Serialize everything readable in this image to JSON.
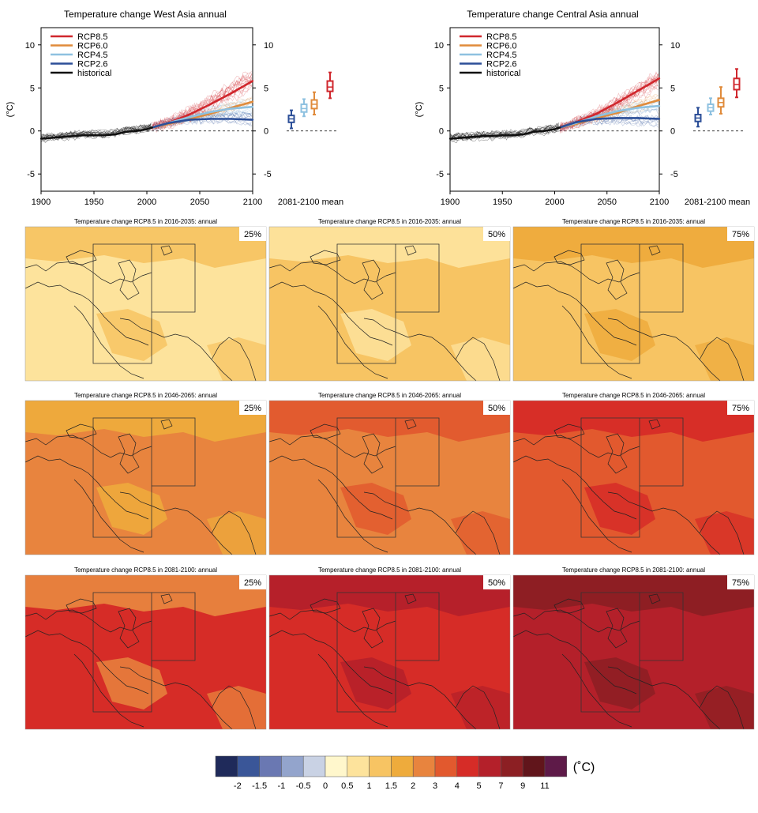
{
  "colorbar": {
    "labels": [
      "-2",
      "-1.5",
      "-1",
      "-0.5",
      "0",
      "0.5",
      "1",
      "1.5",
      "2",
      "3",
      "4",
      "5",
      "7",
      "9",
      "11"
    ],
    "colors": [
      "#1f2a5a",
      "#3a5698",
      "#6a78b2",
      "#93a4cc",
      "#c9d2e4",
      "#fff7cc",
      "#fde39c",
      "#f7c463",
      "#eeab3c",
      "#e8843e",
      "#e2592e",
      "#d62c27",
      "#b4202a",
      "#8c1f23",
      "#61151b",
      "#5e1a48"
    ],
    "unit": "(˚C)"
  },
  "chart_data": [
    {
      "type": "line",
      "title": "Temperature change West Asia annual",
      "ylabel": "(°C)",
      "xlim": [
        1900,
        2100
      ],
      "ylim": [
        -7,
        12
      ],
      "x_ticks": [
        "1900",
        "1950",
        "2000",
        "2050",
        "2100"
      ],
      "y_ticks": [
        "-5",
        "0",
        "5",
        "10"
      ],
      "legend": "top-left",
      "box_label": "2081-2100 mean",
      "series": [
        {
          "name": "RCP8.5",
          "color": "#d0272d",
          "x": [
            2005,
            2020,
            2040,
            2060,
            2080,
            2100
          ],
          "values": [
            0.4,
            0.9,
            1.9,
            3.1,
            4.4,
            5.8
          ]
        },
        {
          "name": "RCP6.0",
          "color": "#e08b3b",
          "x": [
            2005,
            2020,
            2040,
            2060,
            2080,
            2100
          ],
          "values": [
            0.4,
            0.8,
            1.4,
            2.0,
            2.7,
            3.4
          ]
        },
        {
          "name": "RCP4.5",
          "color": "#8ec1e0",
          "x": [
            2005,
            2020,
            2040,
            2060,
            2080,
            2100
          ],
          "values": [
            0.4,
            0.9,
            1.6,
            2.2,
            2.6,
            2.8
          ]
        },
        {
          "name": "RCP2.6",
          "color": "#2c4f98",
          "x": [
            2005,
            2020,
            2040,
            2060,
            2080,
            2100
          ],
          "values": [
            0.4,
            0.9,
            1.3,
            1.4,
            1.4,
            1.3
          ]
        },
        {
          "name": "historical",
          "color": "#111111",
          "x": [
            1900,
            1910,
            1920,
            1930,
            1940,
            1950,
            1960,
            1970,
            1980,
            1990,
            2000,
            2005
          ],
          "values": [
            -0.9,
            -0.8,
            -0.7,
            -0.6,
            -0.5,
            -0.5,
            -0.5,
            -0.4,
            -0.1,
            0.0,
            0.2,
            0.4
          ]
        }
      ],
      "boxes": [
        {
          "name": "RCP2.6",
          "min": 0.3,
          "q1": 1.0,
          "median": 1.4,
          "q3": 1.8,
          "max": 2.4
        },
        {
          "name": "RCP4.5",
          "min": 1.7,
          "q1": 2.2,
          "median": 2.6,
          "q3": 3.1,
          "max": 3.7
        },
        {
          "name": "RCP6.0",
          "min": 1.9,
          "q1": 2.6,
          "median": 3.1,
          "q3": 3.6,
          "max": 4.5
        },
        {
          "name": "RCP8.5",
          "min": 3.8,
          "q1": 4.6,
          "median": 5.1,
          "q3": 5.8,
          "max": 6.8
        }
      ]
    },
    {
      "type": "line",
      "title": "Temperature change Central Asia annual",
      "ylabel": "(°C)",
      "xlim": [
        1900,
        2100
      ],
      "ylim": [
        -7,
        12
      ],
      "x_ticks": [
        "1900",
        "1950",
        "2000",
        "2050",
        "2100"
      ],
      "y_ticks": [
        "-5",
        "0",
        "5",
        "10"
      ],
      "legend": "top-left",
      "box_label": "2081-2100 mean",
      "series": [
        {
          "name": "RCP8.5",
          "color": "#d0272d",
          "x": [
            2005,
            2020,
            2040,
            2060,
            2080,
            2100
          ],
          "values": [
            0.4,
            1.0,
            2.0,
            3.3,
            4.7,
            6.1
          ]
        },
        {
          "name": "RCP6.0",
          "color": "#e08b3b",
          "x": [
            2005,
            2020,
            2040,
            2060,
            2080,
            2100
          ],
          "values": [
            0.4,
            0.8,
            1.5,
            2.1,
            2.9,
            3.6
          ]
        },
        {
          "name": "RCP4.5",
          "color": "#8ec1e0",
          "x": [
            2005,
            2020,
            2040,
            2060,
            2080,
            2100
          ],
          "values": [
            0.4,
            0.9,
            1.7,
            2.3,
            2.7,
            2.9
          ]
        },
        {
          "name": "RCP2.6",
          "color": "#2c4f98",
          "x": [
            2005,
            2020,
            2040,
            2060,
            2080,
            2100
          ],
          "values": [
            0.4,
            1.0,
            1.4,
            1.5,
            1.5,
            1.4
          ]
        },
        {
          "name": "historical",
          "color": "#111111",
          "x": [
            1900,
            1910,
            1920,
            1930,
            1940,
            1950,
            1960,
            1970,
            1980,
            1990,
            2000,
            2005
          ],
          "values": [
            -0.9,
            -0.8,
            -0.7,
            -0.6,
            -0.6,
            -0.5,
            -0.5,
            -0.4,
            -0.1,
            0.0,
            0.2,
            0.4
          ]
        }
      ],
      "boxes": [
        {
          "name": "RCP2.6",
          "min": 0.5,
          "q1": 1.1,
          "median": 1.5,
          "q3": 1.9,
          "max": 2.7
        },
        {
          "name": "RCP4.5",
          "min": 1.9,
          "q1": 2.3,
          "median": 2.7,
          "q3": 3.1,
          "max": 3.8
        },
        {
          "name": "RCP6.0",
          "min": 2.0,
          "q1": 2.8,
          "median": 3.3,
          "q3": 3.8,
          "max": 5.1
        },
        {
          "name": "RCP8.5",
          "min": 3.9,
          "q1": 4.8,
          "median": 5.4,
          "q3": 6.1,
          "max": 7.2
        }
      ]
    },
    {
      "type": "heatmap",
      "panels": [
        {
          "title": "Temperature change RCP8.5 in 2016-2035: annual",
          "percentile": "25%",
          "base_color": "#fde39c",
          "patch_color": "#f7c463"
        },
        {
          "title": "Temperature change RCP8.5 in 2016-2035: annual",
          "percentile": "50%",
          "base_color": "#f7c463",
          "patch_color": "#fde39c"
        },
        {
          "title": "Temperature change RCP8.5 in 2016-2035: annual",
          "percentile": "75%",
          "base_color": "#f7c463",
          "patch_color": "#eeab3c"
        },
        {
          "title": "Temperature change RCP8.5 in 2046-2065: annual",
          "percentile": "25%",
          "base_color": "#e8843e",
          "patch_color": "#eeab3c"
        },
        {
          "title": "Temperature change RCP8.5 in 2046-2065: annual",
          "percentile": "50%",
          "base_color": "#e8843e",
          "patch_color": "#e2592e"
        },
        {
          "title": "Temperature change RCP8.5 in 2046-2065: annual",
          "percentile": "75%",
          "base_color": "#e2592e",
          "patch_color": "#d62c27"
        },
        {
          "title": "Temperature change RCP8.5 in 2081-2100: annual",
          "percentile": "25%",
          "base_color": "#d62c27",
          "patch_color": "#e8843e"
        },
        {
          "title": "Temperature change RCP8.5 in 2081-2100: annual",
          "percentile": "50%",
          "base_color": "#d62c27",
          "patch_color": "#b4202a"
        },
        {
          "title": "Temperature change RCP8.5 in 2081-2100: annual",
          "percentile": "75%",
          "base_color": "#b4202a",
          "patch_color": "#8c1f23"
        }
      ]
    }
  ]
}
